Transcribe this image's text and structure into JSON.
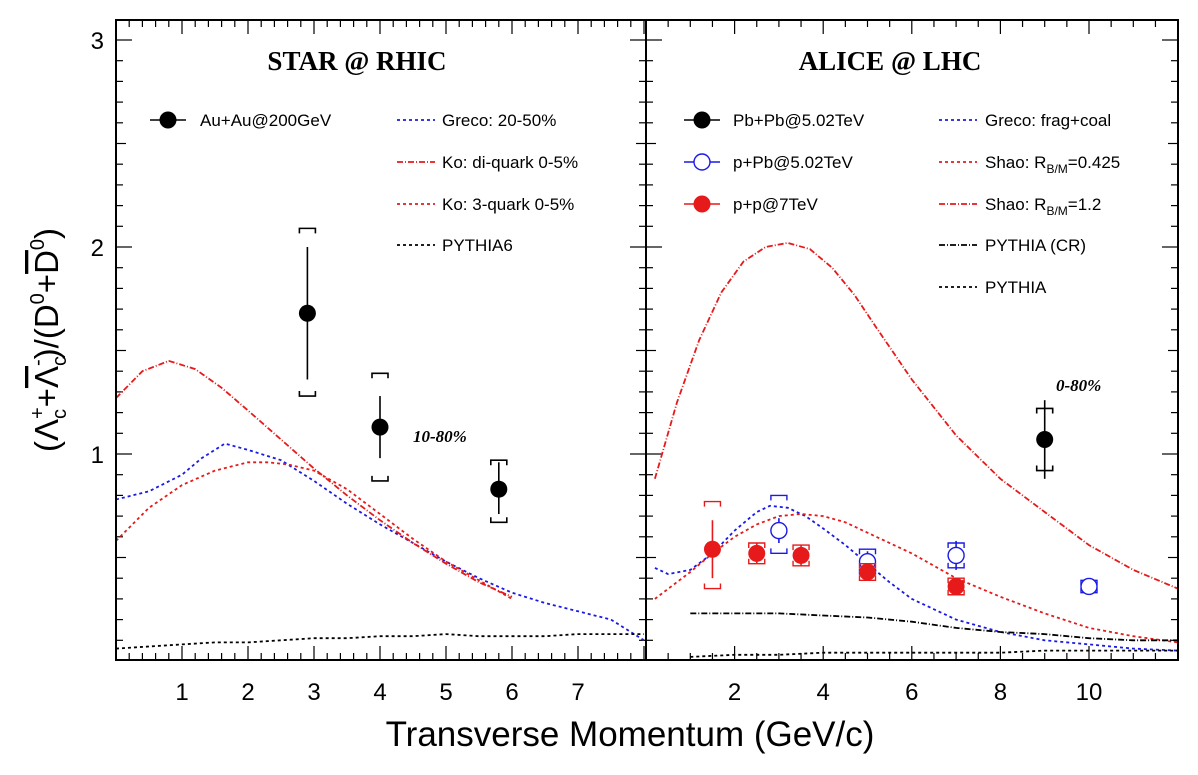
{
  "chart_data": [
    {
      "type": "scatter",
      "panel": "left",
      "title": "STAR @ RHIC",
      "annotation": "10-80%",
      "xlabel": "Transverse Momentum (GeV/c)",
      "ylabel": "(Λc⁺+Λc⁻)/(D⁰+D̄⁰)",
      "xlim": [
        0,
        8
      ],
      "ylim": [
        0.0,
        3.0
      ],
      "x_ticks": [
        1,
        2,
        3,
        4,
        5,
        6,
        7
      ],
      "y_ticks": [
        1,
        2,
        3
      ],
      "legend": {
        "position": "top",
        "columns": 2
      },
      "points": [
        {
          "name": "Au+Au@200GeV",
          "color": "#000000",
          "marker": "filled-circle",
          "data": [
            {
              "x": 2.9,
              "y": 1.68,
              "err_lo": 0.32,
              "err_hi": 0.32,
              "sys_lo": 0.4,
              "sys_hi": 0.41
            },
            {
              "x": 4.0,
              "y": 1.13,
              "err_lo": 0.15,
              "err_hi": 0.15,
              "sys_lo": 0.26,
              "sys_hi": 0.26
            },
            {
              "x": 5.8,
              "y": 0.83,
              "err_lo": 0.12,
              "err_hi": 0.13,
              "sys_lo": 0.16,
              "sys_hi": 0.14
            }
          ]
        }
      ],
      "curves": [
        {
          "name": "Greco: 20-50%",
          "color": "#1a1ae6",
          "dash": "3,3",
          "x": [
            0,
            0.5,
            1.0,
            1.3,
            1.65,
            2.0,
            2.5,
            3.0,
            3.5,
            4.0,
            4.5,
            5.0,
            5.5,
            6.0,
            6.5,
            7.0,
            7.5,
            8.0
          ],
          "y": [
            0.78,
            0.82,
            0.9,
            0.98,
            1.05,
            1.02,
            0.97,
            0.87,
            0.76,
            0.66,
            0.57,
            0.48,
            0.4,
            0.33,
            0.28,
            0.24,
            0.2,
            0.1
          ]
        },
        {
          "name": "Ko: di-quark 0-5%",
          "color": "#e61a1a",
          "dash": "6,2,1,2",
          "x": [
            0,
            0.4,
            0.8,
            1.2,
            1.6,
            2.0,
            2.5,
            3.0,
            3.5,
            4.0,
            4.5,
            5.0,
            5.5,
            6.0
          ],
          "y": [
            1.27,
            1.4,
            1.45,
            1.41,
            1.32,
            1.21,
            1.07,
            0.93,
            0.8,
            0.68,
            0.57,
            0.47,
            0.38,
            0.31
          ]
        },
        {
          "name": "Ko: 3-quark 0-5%",
          "color": "#e61a1a",
          "dash": "3,3",
          "x": [
            0,
            0.5,
            1.0,
            1.5,
            2.0,
            2.3,
            2.6,
            3.0,
            3.5,
            4.0,
            4.5,
            5.0,
            5.5,
            6.0
          ],
          "y": [
            0.58,
            0.74,
            0.85,
            0.92,
            0.96,
            0.96,
            0.95,
            0.92,
            0.83,
            0.71,
            0.59,
            0.48,
            0.39,
            0.3
          ]
        },
        {
          "name": "PYTHIA6",
          "color": "#000000",
          "dash": "3,3",
          "x": [
            0,
            0.5,
            1.0,
            1.5,
            2.0,
            2.5,
            3.0,
            3.5,
            4.0,
            4.5,
            5.0,
            5.5,
            6.0,
            6.5,
            7.0,
            7.5,
            8.0
          ],
          "y": [
            0.06,
            0.07,
            0.08,
            0.09,
            0.09,
            0.1,
            0.11,
            0.11,
            0.12,
            0.12,
            0.13,
            0.12,
            0.12,
            0.12,
            0.13,
            0.13,
            0.13
          ]
        }
      ]
    },
    {
      "type": "scatter",
      "panel": "right",
      "title": "ALICE @ LHC",
      "annotation": "0-80%",
      "xlabel": "Transverse Momentum (GeV/c)",
      "xlim": [
        0,
        12
      ],
      "ylim": [
        0.0,
        3.0
      ],
      "x_ticks": [
        2,
        4,
        6,
        8,
        10
      ],
      "legend": {
        "position": "top",
        "columns": 2
      },
      "points": [
        {
          "name": "Pb+Pb@5.02TeV",
          "color": "#000000",
          "marker": "filled-circle",
          "data": [
            {
              "x": 9.0,
              "y": 1.07,
              "err_lo": 0.19,
              "err_hi": 0.19,
              "sys_lo": 0.15,
              "sys_hi": 0.15
            }
          ]
        },
        {
          "name": "p+Pb@5.02TeV",
          "color": "#1a1ae6",
          "marker": "open-circle",
          "data": [
            {
              "x": 3.0,
              "y": 0.63,
              "err_lo": 0.06,
              "err_hi": 0.06,
              "sys_lo": 0.11,
              "sys_hi": 0.17
            },
            {
              "x": 5.0,
              "y": 0.48,
              "err_lo": 0.05,
              "err_hi": 0.05,
              "sys_lo": 0.06,
              "sys_hi": 0.06
            },
            {
              "x": 7.0,
              "y": 0.51,
              "err_lo": 0.07,
              "err_hi": 0.07,
              "sys_lo": 0.06,
              "sys_hi": 0.06
            },
            {
              "x": 10.0,
              "y": 0.36,
              "err_lo": 0.04,
              "err_hi": 0.04,
              "sys_lo": 0.03,
              "sys_hi": 0.03
            }
          ]
        },
        {
          "name": "p+p@7TeV",
          "color": "#e61a1a",
          "marker": "filled-circle",
          "data": [
            {
              "x": 1.5,
              "y": 0.54,
              "err_lo": 0.14,
              "err_hi": 0.14,
              "sys_lo": 0.19,
              "sys_hi": 0.23
            },
            {
              "x": 2.5,
              "y": 0.52,
              "err_lo": 0.05,
              "err_hi": 0.05,
              "sys_lo": 0.05,
              "sys_hi": 0.05
            },
            {
              "x": 3.5,
              "y": 0.51,
              "err_lo": 0.05,
              "err_hi": 0.05,
              "sys_lo": 0.05,
              "sys_hi": 0.05
            },
            {
              "x": 5.0,
              "y": 0.43,
              "err_lo": 0.04,
              "err_hi": 0.04,
              "sys_lo": 0.04,
              "sys_hi": 0.04
            },
            {
              "x": 7.0,
              "y": 0.36,
              "err_lo": 0.04,
              "err_hi": 0.04,
              "sys_lo": 0.04,
              "sys_hi": 0.04
            }
          ]
        }
      ],
      "curves": [
        {
          "name": "Greco: frag+coal",
          "color": "#1a1ae6",
          "dash": "3,3",
          "x": [
            0.2,
            0.5,
            1.0,
            1.5,
            2.0,
            2.5,
            2.8,
            3.2,
            3.6,
            4.0,
            4.5,
            5.0,
            5.5,
            6.0,
            7.0,
            8.0,
            9.0,
            10.0,
            11.0,
            12.0
          ],
          "y": [
            0.45,
            0.42,
            0.44,
            0.52,
            0.63,
            0.72,
            0.75,
            0.74,
            0.7,
            0.64,
            0.56,
            0.47,
            0.38,
            0.3,
            0.2,
            0.14,
            0.1,
            0.08,
            0.06,
            0.05
          ]
        },
        {
          "name": "Shao: R_B/M=0.425",
          "color": "#e61a1a",
          "dash": "3,3",
          "x": [
            0.2,
            1.0,
            1.5,
            2.0,
            2.5,
            3.0,
            3.5,
            4.0,
            4.5,
            5.0,
            6.0,
            7.0,
            8.0,
            9.0,
            10.0,
            11.0,
            12.0
          ],
          "y": [
            0.3,
            0.43,
            0.52,
            0.6,
            0.66,
            0.7,
            0.71,
            0.7,
            0.67,
            0.62,
            0.52,
            0.4,
            0.31,
            0.23,
            0.16,
            0.12,
            0.09
          ]
        },
        {
          "name": "Shao: R_B/M=1.2",
          "color": "#e61a1a",
          "dash": "6,2,1,2",
          "x": [
            0.2,
            0.7,
            1.2,
            1.7,
            2.2,
            2.7,
            3.2,
            3.7,
            4.2,
            4.7,
            5.2,
            6.0,
            7.0,
            8.0,
            9.0,
            10.0,
            11.0,
            12.0
          ],
          "y": [
            0.88,
            1.25,
            1.55,
            1.78,
            1.93,
            2.0,
            2.02,
            1.99,
            1.9,
            1.77,
            1.61,
            1.36,
            1.09,
            0.88,
            0.72,
            0.56,
            0.44,
            0.35
          ]
        },
        {
          "name": "PYTHIA (CR)",
          "color": "#000000",
          "dash": "6,2,1,2",
          "x": [
            1.0,
            2.0,
            3.0,
            4.0,
            5.0,
            6.0,
            7.0,
            8.0,
            9.0,
            10.0,
            11.0,
            12.0
          ],
          "y": [
            0.23,
            0.23,
            0.23,
            0.22,
            0.21,
            0.19,
            0.16,
            0.14,
            0.13,
            0.11,
            0.1,
            0.1
          ]
        },
        {
          "name": "PYTHIA",
          "color": "#000000",
          "dash": "3,3",
          "x": [
            1.0,
            2.0,
            3.0,
            4.0,
            5.0,
            6.0,
            7.0,
            8.0,
            9.0,
            10.0,
            11.0,
            12.0
          ],
          "y": [
            0.02,
            0.03,
            0.03,
            0.04,
            0.04,
            0.04,
            0.04,
            0.04,
            0.05,
            0.05,
            0.05,
            0.05
          ]
        }
      ]
    }
  ],
  "legend_left": [
    {
      "label": "Au+Au@200GeV",
      "kind": "marker",
      "color": "#000000",
      "marker": "filled-circle"
    },
    {
      "label": "Greco: 20-50%",
      "kind": "line",
      "color": "#1a1ae6",
      "dash": "3,3"
    },
    {
      "label": "Ko: di-quark 0-5%",
      "kind": "line",
      "color": "#e61a1a",
      "dash": "6,2,1,2"
    },
    {
      "label": "Ko: 3-quark 0-5%",
      "kind": "line",
      "color": "#e61a1a",
      "dash": "3,3"
    },
    {
      "label": "PYTHIA6",
      "kind": "line",
      "color": "#000000",
      "dash": "3,3"
    }
  ],
  "legend_right": [
    {
      "label": "Pb+Pb@5.02TeV",
      "kind": "marker",
      "color": "#000000",
      "marker": "filled-circle"
    },
    {
      "label": "p+Pb@5.02TeV",
      "kind": "marker",
      "color": "#1a1ae6",
      "marker": "open-circle"
    },
    {
      "label": "p+p@7TeV",
      "kind": "marker",
      "color": "#e61a1a",
      "marker": "filled-circle"
    },
    {
      "label": "Greco: frag+coal",
      "kind": "line",
      "color": "#1a1ae6",
      "dash": "3,3"
    },
    {
      "label": "Shao: R",
      "sub": "B/M",
      "suffix": "=0.425",
      "kind": "line",
      "color": "#e61a1a",
      "dash": "3,3"
    },
    {
      "label": "Shao: R",
      "sub": "B/M",
      "suffix": "=1.2",
      "kind": "line",
      "color": "#e61a1a",
      "dash": "6,2,1,2"
    },
    {
      "label": "PYTHIA (CR)",
      "kind": "line",
      "color": "#000000",
      "dash": "6,2,1,2"
    },
    {
      "label": "PYTHIA",
      "kind": "line",
      "color": "#000000",
      "dash": "3,3"
    }
  ],
  "axis": {
    "xlabel": "Transverse Momentum (GeV/c)"
  }
}
